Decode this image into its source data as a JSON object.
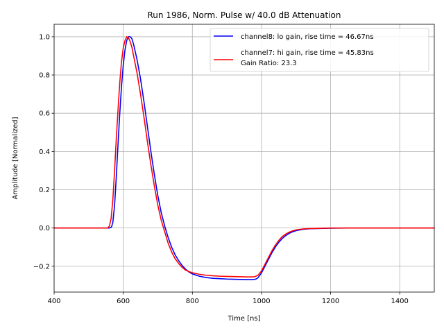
{
  "chart_data": {
    "type": "line",
    "title": "Run 1986, Norm. Pulse w/ 40.0 dB Attenuation",
    "xlabel": "Time [ns]",
    "ylabel": "Amplitude [Normalized]",
    "xlim": [
      400,
      1500
    ],
    "ylim": [
      -0.335,
      1.065
    ],
    "xticks": [
      400,
      600,
      800,
      1000,
      1200,
      1400
    ],
    "yticks": [
      -0.2,
      0.0,
      0.2,
      0.4,
      0.6,
      0.8,
      1.0
    ],
    "xtick_labels": [
      "400",
      "600",
      "800",
      "1000",
      "1200",
      "1400"
    ],
    "ytick_labels": [
      "−0.2",
      "0.0",
      "0.2",
      "0.4",
      "0.6",
      "0.8",
      "1.0"
    ],
    "grid": true,
    "legend": {
      "placement": "top-right",
      "extra_text": "Gain Ratio: 23.3"
    },
    "series": [
      {
        "name": "channel8: lo gain, rise time = 46.67ns",
        "color": "#0000ff",
        "x": [
          400,
          560,
          566,
          570,
          575,
          580,
          585,
          590,
          595,
          600,
          605,
          610,
          615,
          620,
          625,
          630,
          640,
          650,
          660,
          670,
          680,
          690,
          700,
          710,
          720,
          730,
          740,
          750,
          760,
          770,
          780,
          790,
          800,
          820,
          840,
          860,
          880,
          900,
          920,
          940,
          960,
          970,
          980,
          985,
          990,
          1000,
          1010,
          1020,
          1030,
          1040,
          1050,
          1060,
          1070,
          1080,
          1090,
          1100,
          1120,
          1140,
          1160,
          1180,
          1200,
          1250,
          1300,
          1350,
          1400,
          1450,
          1500
        ],
        "y": [
          0.0,
          0.0,
          0.005,
          0.03,
          0.12,
          0.27,
          0.44,
          0.6,
          0.74,
          0.85,
          0.93,
          0.98,
          1.0,
          1.0,
          0.99,
          0.96,
          0.88,
          0.78,
          0.66,
          0.53,
          0.4,
          0.28,
          0.17,
          0.08,
          0.01,
          -0.05,
          -0.1,
          -0.14,
          -0.17,
          -0.195,
          -0.215,
          -0.23,
          -0.24,
          -0.252,
          -0.259,
          -0.263,
          -0.265,
          -0.267,
          -0.268,
          -0.269,
          -0.27,
          -0.27,
          -0.269,
          -0.266,
          -0.26,
          -0.235,
          -0.2,
          -0.165,
          -0.13,
          -0.1,
          -0.075,
          -0.055,
          -0.04,
          -0.028,
          -0.02,
          -0.014,
          -0.007,
          -0.004,
          -0.003,
          -0.002,
          -0.001,
          0.0,
          0.0,
          0.0,
          0.0,
          0.0,
          0.0
        ]
      },
      {
        "name": "channel7: hi gain, rise time = 45.83ns",
        "color": "#ff0000",
        "x": [
          400,
          555,
          560,
          565,
          570,
          575,
          580,
          585,
          590,
          595,
          600,
          605,
          610,
          615,
          620,
          625,
          630,
          640,
          650,
          660,
          670,
          680,
          690,
          700,
          710,
          720,
          730,
          740,
          750,
          760,
          770,
          780,
          790,
          800,
          820,
          840,
          860,
          880,
          900,
          920,
          940,
          960,
          970,
          980,
          990,
          1000,
          1010,
          1020,
          1030,
          1040,
          1050,
          1060,
          1070,
          1080,
          1090,
          1100,
          1120,
          1140,
          1160,
          1180,
          1200,
          1250,
          1300,
          1350,
          1400,
          1450,
          1500
        ],
        "y": [
          0.0,
          0.0,
          0.01,
          0.05,
          0.15,
          0.3,
          0.47,
          0.62,
          0.76,
          0.87,
          0.94,
          0.98,
          1.0,
          0.995,
          0.975,
          0.945,
          0.9,
          0.81,
          0.7,
          0.58,
          0.45,
          0.33,
          0.22,
          0.12,
          0.04,
          -0.02,
          -0.08,
          -0.125,
          -0.16,
          -0.185,
          -0.205,
          -0.22,
          -0.228,
          -0.234,
          -0.242,
          -0.247,
          -0.25,
          -0.252,
          -0.253,
          -0.254,
          -0.255,
          -0.256,
          -0.256,
          -0.255,
          -0.247,
          -0.225,
          -0.19,
          -0.155,
          -0.12,
          -0.09,
          -0.065,
          -0.045,
          -0.032,
          -0.022,
          -0.015,
          -0.01,
          -0.005,
          -0.003,
          -0.002,
          -0.001,
          0.0,
          0.0,
          0.0,
          0.0,
          0.0,
          0.0,
          0.0
        ]
      }
    ]
  },
  "colors": {
    "background": "#ffffff",
    "grid": "#b0b0b0",
    "axes": "#000000",
    "legend_border": "#cccccc"
  }
}
